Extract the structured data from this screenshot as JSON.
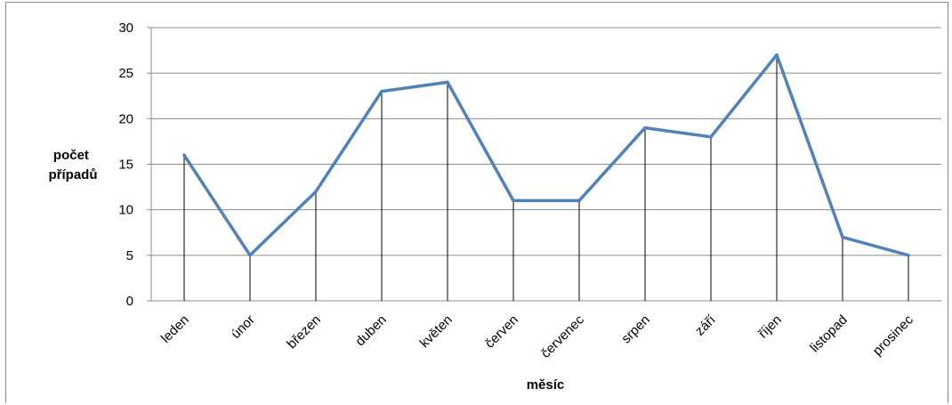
{
  "chart_data": {
    "type": "line",
    "categories": [
      "leden",
      "únor",
      "březen",
      "duben",
      "květen",
      "červen",
      "červenec",
      "srpen",
      "září",
      "říjen",
      "listopad",
      "prosinec"
    ],
    "series": [
      {
        "values": [
          16,
          5,
          12,
          23,
          24,
          11,
          11,
          19,
          18,
          27,
          7,
          5
        ],
        "color": "#4f81bd"
      }
    ],
    "xlabel": "měsíc",
    "ylabel_lines": [
      "počet",
      "případů"
    ],
    "ylim": [
      0,
      30
    ],
    "yticks": [
      0,
      5,
      10,
      15,
      20,
      25,
      30
    ],
    "grid": true,
    "drop_lines": true,
    "legend": "none"
  }
}
